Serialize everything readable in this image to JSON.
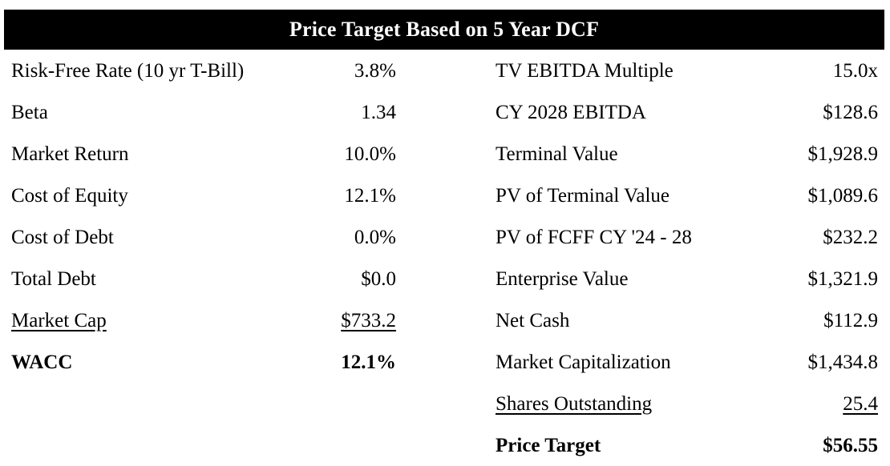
{
  "title_bar": {
    "title": "Price Target Based on 5 Year DCF"
  },
  "colors": {
    "header_background": "#000000",
    "header_text": "#ffffff",
    "body_text": "#000000",
    "page_background": "#ffffff"
  },
  "left_column": {
    "rows": [
      {
        "label": "Risk-Free Rate (10 yr T-Bill)",
        "value": "3.8%",
        "style": "normal"
      },
      {
        "label": "Beta",
        "value": "1.34",
        "style": "normal"
      },
      {
        "label": "Market Return",
        "value": "10.0%",
        "style": "normal"
      },
      {
        "label": "Cost of Equity",
        "value": "12.1%",
        "style": "normal"
      },
      {
        "label": "Cost of Debt",
        "value": "0.0%",
        "style": "normal"
      },
      {
        "label": "Total Debt",
        "value": "$0.0",
        "style": "normal"
      },
      {
        "label": "Market Cap",
        "value": "$733.2",
        "style": "underline"
      },
      {
        "label": "WACC",
        "value": "12.1%",
        "style": "bold"
      }
    ]
  },
  "right_column": {
    "rows": [
      {
        "label": "TV EBITDA Multiple",
        "value": "15.0x",
        "style": "normal"
      },
      {
        "label": "CY 2028 EBITDA",
        "value": "$128.6",
        "style": "normal"
      },
      {
        "label": "Terminal Value",
        "value": "$1,928.9",
        "style": "normal"
      },
      {
        "label": "PV of Terminal Value",
        "value": "$1,089.6",
        "style": "normal"
      },
      {
        "label": "PV of FCFF CY '24 - 28",
        "value": "$232.2",
        "style": "normal"
      },
      {
        "label": "Enterprise Value",
        "value": "$1,321.9",
        "style": "normal"
      },
      {
        "label": "Net Cash",
        "value": "$112.9",
        "style": "normal"
      },
      {
        "label": "Market Capitalization",
        "value": "$1,434.8",
        "style": "normal"
      },
      {
        "label": "Shares Outstanding",
        "value": "25.4",
        "style": "underline"
      },
      {
        "label": "Price Target",
        "value": "$56.55",
        "style": "bold"
      }
    ]
  }
}
